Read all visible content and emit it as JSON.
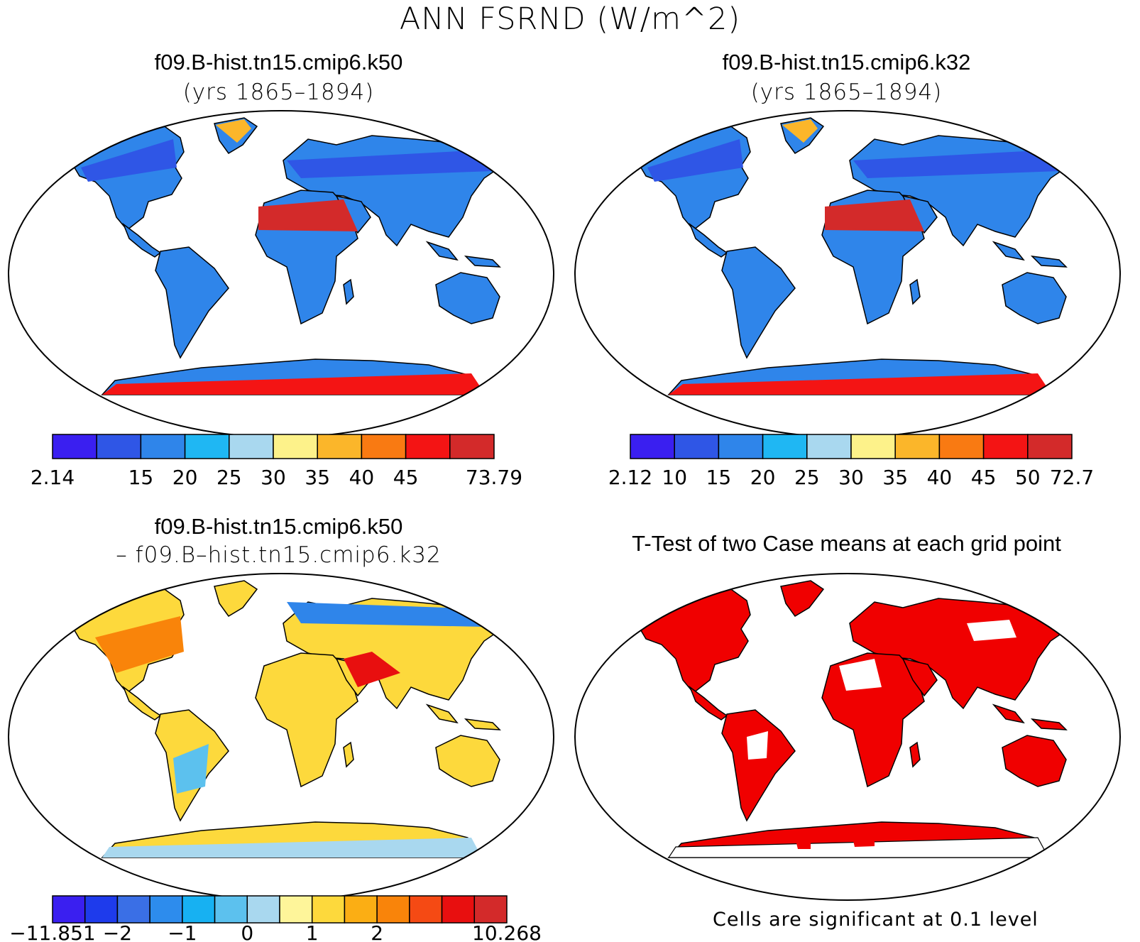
{
  "main_title": "ANN FSRND (W/m^2)",
  "panels": [
    {
      "title": "f09.B-hist.tn15.cmip6.k50",
      "subtitle": "(yrs 1865–1894)",
      "colorbar": {
        "colors": [
          "#3a1ff0",
          "#2f56e6",
          "#2f85ea",
          "#1fb7f3",
          "#a9d8ef",
          "#fdf28a",
          "#fbb62a",
          "#f97a12",
          "#f41414",
          "#d32a2a"
        ],
        "labels": [
          "2.14",
          "",
          "15",
          "20",
          "25",
          "30",
          "35",
          "40",
          "45",
          "",
          "73.79"
        ]
      }
    },
    {
      "title": "f09.B-hist.tn15.cmip6.k32",
      "subtitle": "(yrs 1865–1894)",
      "colorbar": {
        "colors": [
          "#3a1ff0",
          "#2f56e6",
          "#2f85ea",
          "#1fb7f3",
          "#a9d8ef",
          "#fdf28a",
          "#fbb62a",
          "#f97a12",
          "#f41414",
          "#d32a2a"
        ],
        "labels": [
          "2.12",
          "10",
          "15",
          "20",
          "25",
          "30",
          "35",
          "40",
          "45",
          "50",
          "72.7"
        ]
      }
    },
    {
      "title": "f09.B-hist.tn15.cmip6.k50",
      "subtitle": "– f09.B–hist.tn15.cmip6.k32",
      "colorbar": {
        "colors": [
          "#3a1ff0",
          "#1e3bec",
          "#3a6fe6",
          "#2d8ced",
          "#17b1f2",
          "#5cc1ee",
          "#a9d8ef",
          "#fef59a",
          "#fdd93c",
          "#fbae14",
          "#f9840a",
          "#f54a14",
          "#e80f0f",
          "#d32a2a"
        ],
        "labels": [
          "−11.851",
          "",
          "−2",
          "",
          "−1",
          "",
          "0",
          "",
          "1",
          "",
          "2",
          "",
          "",
          "",
          "10.268"
        ]
      }
    },
    {
      "title": "T-Test of two Case means at each grid point",
      "note": "Cells are significant at 0.1 level"
    }
  ],
  "colors": {
    "land_outline": "#000000",
    "significant": "#f00000"
  }
}
